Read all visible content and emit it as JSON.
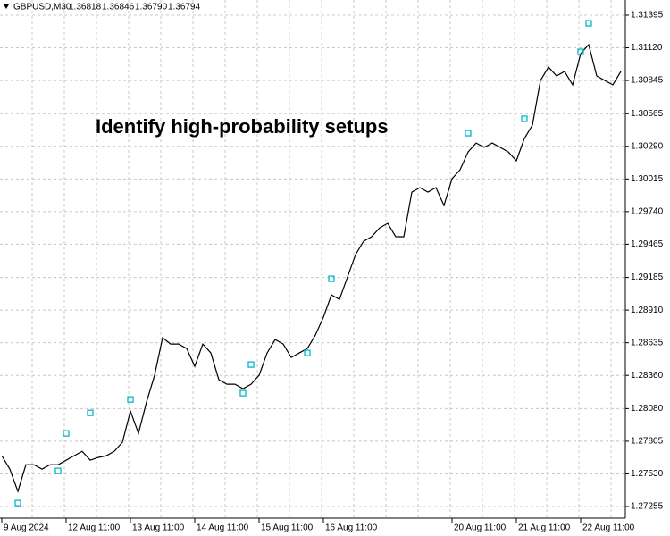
{
  "header": {
    "symbol": "GBPUSD,M30",
    "quote": [
      "1.36818",
      "1.36846",
      "1.36790",
      "1.36794"
    ]
  },
  "chart_data": {
    "type": "line",
    "annotation": "Identify high-probability setups",
    "color": "#000000",
    "signal_color": "#00b8c8",
    "grid": true,
    "categories": [
      "9 Aug 2024",
      null,
      null,
      null,
      null,
      null,
      null,
      null,
      "12 Aug 11:00",
      null,
      null,
      null,
      null,
      null,
      null,
      null,
      "13 Aug 11:00",
      null,
      null,
      null,
      null,
      null,
      null,
      null,
      "14 Aug 11:00",
      null,
      null,
      null,
      null,
      null,
      null,
      null,
      "15 Aug 11:00",
      null,
      null,
      null,
      null,
      null,
      null,
      null,
      "16 Aug 11:00",
      null,
      null,
      null,
      null,
      null,
      null,
      null,
      null,
      null,
      null,
      null,
      null,
      null,
      null,
      null,
      "20 Aug 11:00",
      null,
      null,
      null,
      null,
      null,
      null,
      null,
      "21 Aug 11:00",
      null,
      null,
      null,
      null,
      null,
      null,
      null,
      "22 Aug 11:00",
      null,
      null,
      null,
      null,
      null
    ],
    "values": [
      1.27683,
      1.2757,
      1.27382,
      1.27607,
      1.27607,
      1.2757,
      1.27607,
      1.27607,
      1.27645,
      1.27683,
      1.2772,
      1.27645,
      1.27668,
      1.27683,
      1.2772,
      1.27796,
      1.28059,
      1.27871,
      1.28135,
      1.2836,
      1.28677,
      1.28624,
      1.28624,
      1.28586,
      1.28436,
      1.28624,
      1.28549,
      1.28323,
      1.28285,
      1.28285,
      1.28247,
      1.28285,
      1.2836,
      1.28549,
      1.28662,
      1.28624,
      1.28511,
      1.28549,
      1.28586,
      1.28699,
      1.2885,
      1.29038,
      1.29,
      1.29189,
      1.29377,
      1.2949,
      1.29528,
      1.29603,
      1.29641,
      1.29528,
      1.29528,
      1.29904,
      1.29942,
      1.29904,
      1.29942,
      1.29791,
      1.30017,
      1.30092,
      1.30243,
      1.30318,
      1.30281,
      1.30318,
      1.30281,
      1.30243,
      1.30168,
      1.30356,
      1.30469,
      1.30845,
      1.30958,
      1.30883,
      1.30921,
      1.30808,
      1.31071,
      1.31147,
      1.30883,
      1.30845,
      1.30808,
      1.30921
    ],
    "signals": [
      null,
      null,
      1.27284,
      null,
      null,
      null,
      null,
      1.27555,
      1.27871,
      null,
      null,
      1.28044,
      null,
      null,
      null,
      null,
      1.28157,
      null,
      null,
      null,
      null,
      null,
      null,
      null,
      null,
      null,
      null,
      null,
      null,
      null,
      1.2821,
      1.28451,
      null,
      null,
      null,
      null,
      null,
      null,
      1.28549,
      null,
      null,
      1.29174,
      null,
      null,
      null,
      null,
      null,
      null,
      null,
      null,
      null,
      null,
      null,
      null,
      null,
      null,
      null,
      null,
      1.30401,
      null,
      null,
      null,
      null,
      null,
      null,
      1.30522,
      null,
      null,
      null,
      null,
      null,
      null,
      1.31086,
      1.31327,
      null,
      null,
      null,
      null
    ],
    "ylim": [
      1.27157,
      1.31523
    ],
    "yticks": [
      {
        "value": 1.27255,
        "label": "1.27255"
      },
      {
        "value": 1.2753,
        "label": "1.27530"
      },
      {
        "value": 1.27805,
        "label": "1.27805"
      },
      {
        "value": 1.2808,
        "label": "1.28080"
      },
      {
        "value": 1.2836,
        "label": "1.28360"
      },
      {
        "value": 1.28635,
        "label": "1.28635"
      },
      {
        "value": 1.2891,
        "label": "1.28910"
      },
      {
        "value": 1.29185,
        "label": "1.29185"
      },
      {
        "value": 1.29465,
        "label": "1.29465"
      },
      {
        "value": 1.2974,
        "label": "1.29740"
      },
      {
        "value": 1.30015,
        "label": "1.30015"
      },
      {
        "value": 1.3029,
        "label": "1.30290"
      },
      {
        "value": 1.30565,
        "label": "1.30565"
      },
      {
        "value": 1.30845,
        "label": "1.30845"
      },
      {
        "value": 1.3112,
        "label": "1.31120"
      },
      {
        "value": 1.31395,
        "label": "1.31395"
      }
    ]
  }
}
